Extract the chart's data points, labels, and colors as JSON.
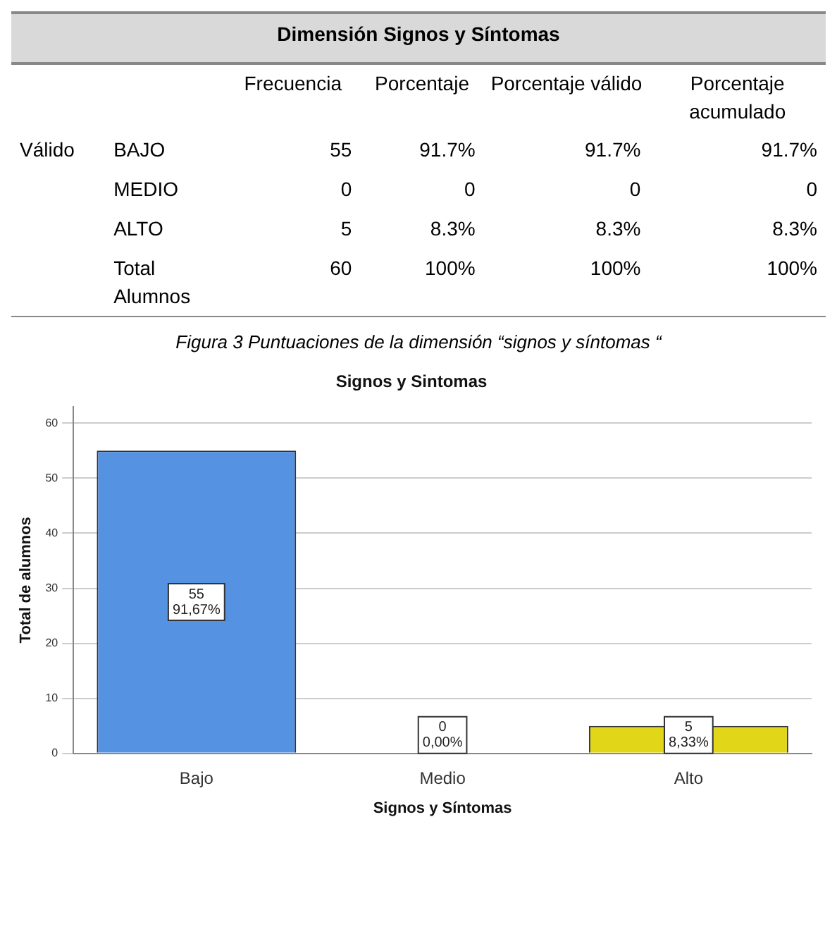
{
  "chart_data": [
    {
      "type": "other",
      "title": "Dimensión Signos y Síntomas",
      "categories": [
        null,
        null,
        "Frecuencia",
        "Porcentaje",
        "Porcentaje válido",
        "Porcentaje acumulado"
      ],
      "cell_labels": [
        [
          "Válido",
          "BAJO",
          "55",
          "91.7%",
          "91.7%",
          "91.7%"
        ],
        [
          null,
          "MEDIO",
          "0",
          "0",
          "0",
          "0"
        ],
        [
          null,
          "ALTO",
          "5",
          "8.3%",
          "8.3%",
          "8.3%"
        ],
        [
          null,
          "Total Alumnos",
          "60",
          "100%",
          "100%",
          "100%"
        ]
      ]
    },
    {
      "type": "bar",
      "title": "Signos y Sintomas",
      "annotations": [
        "Figura  3 Puntuaciones de la dimensión “signos y síntomas “"
      ],
      "xlabel": "Signos y Síntomas",
      "ylabel": "Total de alumnos",
      "categories": [
        "Bajo",
        "Medio",
        "Alto"
      ],
      "values": [
        55,
        0,
        5
      ],
      "colors": [
        "#5592e2",
        "#32c4c0",
        "#e2d619"
      ],
      "value_labels": [
        "55\n91,67%",
        "0\n0,00%",
        "5\n8,33%"
      ],
      "ylim": [
        0,
        63
      ],
      "yticks": [
        0,
        10,
        20,
        30,
        40,
        50,
        60
      ],
      "grid": "y"
    }
  ]
}
